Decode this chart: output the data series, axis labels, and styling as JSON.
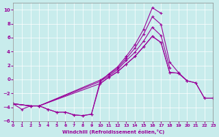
{
  "xlabel": "Windchill (Refroidissement éolien,°C)",
  "background_color": "#c8ecec",
  "line_color": "#990099",
  "grid_color": "#ffffff",
  "xlim": [
    0,
    23
  ],
  "ylim": [
    -6,
    11
  ],
  "xticks": [
    0,
    1,
    2,
    3,
    4,
    5,
    6,
    7,
    8,
    9,
    10,
    11,
    12,
    13,
    14,
    15,
    16,
    17,
    18,
    19,
    20,
    21,
    22,
    23
  ],
  "yticks": [
    -6,
    -4,
    -2,
    0,
    2,
    4,
    6,
    8,
    10
  ],
  "series": [
    {
      "x": [
        0,
        1,
        2,
        3,
        4,
        5,
        6,
        7,
        8,
        9,
        10,
        11,
        12,
        13,
        14,
        15,
        16,
        17,
        18,
        19,
        20,
        21,
        22,
        23
      ],
      "y": [
        -3.5,
        -4.3,
        -3.8,
        -3.8,
        -4.3,
        -4.7,
        -4.7,
        -5.1,
        -5.2,
        -5.0,
        -0.6,
        0.3,
        1.1,
        2.2,
        3.3,
        4.7,
        6.2,
        5.3,
        1.0,
        0.9,
        -0.2,
        -0.5,
        -2.7,
        -2.7
      ]
    },
    {
      "x": [
        0,
        2,
        3,
        4,
        5,
        6,
        7,
        8,
        9,
        10,
        11,
        12,
        13,
        14,
        15,
        16,
        17,
        18
      ],
      "y": [
        -3.5,
        -3.8,
        -3.8,
        -4.3,
        -4.7,
        -4.7,
        -5.1,
        -5.2,
        -5.0,
        -0.3,
        0.5,
        1.4,
        2.7,
        3.9,
        5.5,
        7.5,
        6.3,
        1.7
      ]
    },
    {
      "x": [
        0,
        2,
        3,
        10,
        11,
        12,
        13,
        14,
        15,
        16,
        17,
        18,
        19,
        20
      ],
      "y": [
        -3.5,
        -3.8,
        -3.8,
        -0.1,
        0.7,
        1.6,
        3.0,
        4.5,
        6.5,
        9.0,
        7.9,
        2.5,
        1.0,
        -0.2
      ]
    },
    {
      "x": [
        0,
        2,
        3,
        10,
        11,
        12,
        13,
        14,
        15,
        16,
        17
      ],
      "y": [
        -3.5,
        -3.8,
        -3.8,
        -0.3,
        0.8,
        1.8,
        3.3,
        5.0,
        7.2,
        10.3,
        9.5
      ]
    },
    {
      "x": [
        0,
        2,
        3,
        10,
        11,
        12,
        13,
        14,
        15,
        16,
        17,
        18,
        19,
        20,
        21,
        22,
        23
      ],
      "y": [
        -3.5,
        -3.8,
        -3.8,
        -0.6,
        0.3,
        1.1,
        2.2,
        3.3,
        4.7,
        6.2,
        5.3,
        1.0,
        0.9,
        -0.2,
        -0.5,
        -2.7,
        -2.7
      ]
    }
  ]
}
